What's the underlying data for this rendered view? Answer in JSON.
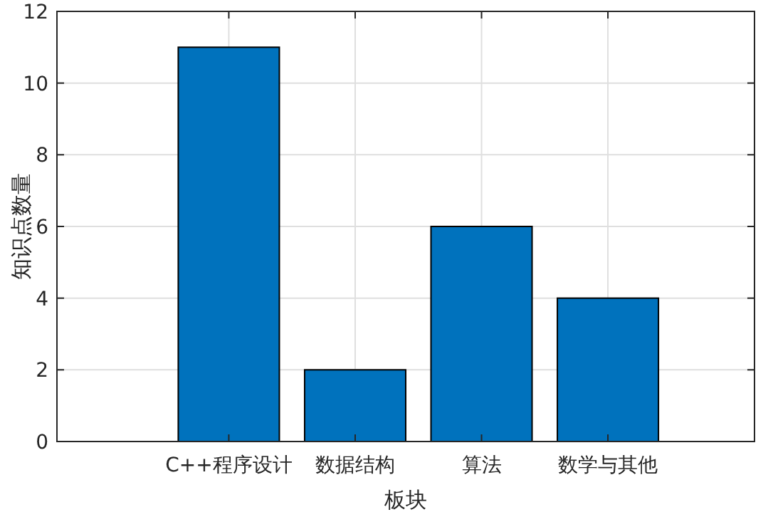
{
  "chart_data": {
    "type": "bar",
    "xlabel": "板块",
    "ylabel": "知识点数量",
    "categories": [
      "C++程序设计",
      "数据结构",
      "算法",
      "数学与其他"
    ],
    "series": [
      {
        "color": "#0072bd",
        "values": [
          11,
          2,
          6,
          4
        ]
      }
    ],
    "ylim": [
      0,
      12
    ],
    "yticks": [
      0,
      2,
      4,
      6,
      8,
      10,
      12
    ],
    "grid": true
  }
}
